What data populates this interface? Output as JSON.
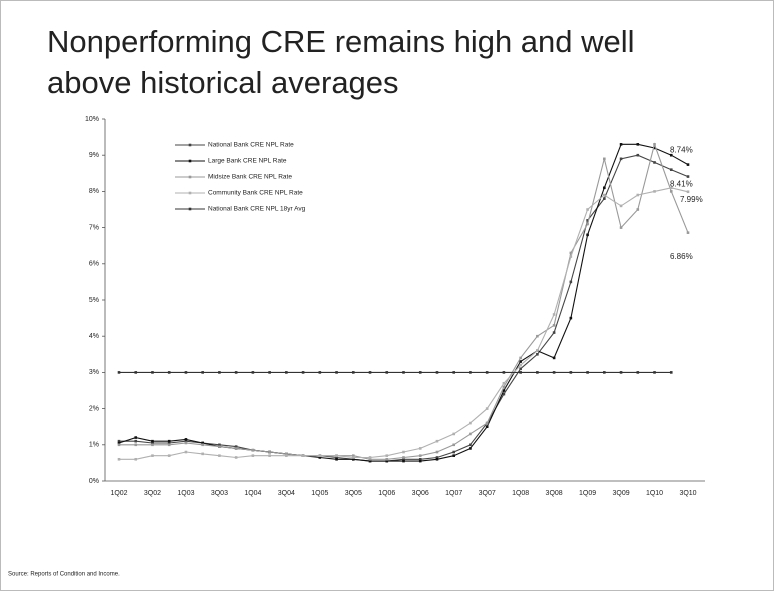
{
  "chart_data": {
    "type": "line",
    "title": "Nonperforming CRE remains high and well above historical averages",
    "source": "Source: Reports of Condition and Income.",
    "categories": [
      "1Q02",
      null,
      "3Q02",
      null,
      "1Q03",
      null,
      "3Q03",
      null,
      "1Q04",
      null,
      "3Q04",
      null,
      "1Q05",
      null,
      "3Q05",
      null,
      "1Q06",
      null,
      "3Q06",
      null,
      "1Q07",
      null,
      "3Q07",
      null,
      "1Q08",
      null,
      "3Q08",
      null,
      "1Q09",
      null,
      "3Q09",
      null,
      "1Q10",
      null,
      "3Q10"
    ],
    "ylim": [
      0,
      10
    ],
    "yticks": [
      {
        "value": 0,
        "label": "0%"
      },
      {
        "value": 1,
        "label": "1%"
      },
      {
        "value": 2,
        "label": "2%"
      },
      {
        "value": 3,
        "label": "3%"
      },
      {
        "value": 4,
        "label": "4%"
      },
      {
        "value": 5,
        "label": "5%"
      },
      {
        "value": 6,
        "label": "6%"
      },
      {
        "value": 7,
        "label": "7%"
      },
      {
        "value": 8,
        "label": "8%"
      },
      {
        "value": 9,
        "label": "9%"
      },
      {
        "value": 10,
        "label": "10%"
      }
    ],
    "series": [
      {
        "name": "National Bank CRE NPL Rate",
        "color": "#444444",
        "values": [
          1.1,
          1.1,
          1.05,
          1.05,
          1.1,
          1.05,
          1.0,
          0.95,
          0.85,
          0.8,
          0.75,
          0.7,
          0.7,
          0.65,
          0.6,
          0.55,
          0.55,
          0.6,
          0.6,
          0.65,
          0.8,
          1.0,
          1.6,
          2.4,
          3.1,
          3.5,
          4.1,
          5.5,
          7.2,
          7.8,
          8.9,
          9.0,
          8.8,
          8.6,
          8.41
        ],
        "value_labels": [
          null,
          null,
          null,
          null,
          null,
          null,
          null,
          null,
          null,
          null,
          null,
          null,
          null,
          null,
          null,
          null,
          null,
          null,
          null,
          null,
          null,
          null,
          null,
          null,
          null,
          null,
          null,
          null,
          null,
          null,
          null,
          null,
          null,
          null,
          "8.41%"
        ]
      },
      {
        "name": "Large Bank CRE NPL Rate",
        "color": "#111111",
        "values": [
          1.05,
          1.2,
          1.1,
          1.1,
          1.15,
          1.05,
          0.95,
          0.9,
          0.85,
          0.8,
          0.75,
          0.7,
          0.65,
          0.6,
          0.6,
          0.55,
          0.55,
          0.55,
          0.55,
          0.6,
          0.7,
          0.9,
          1.5,
          2.5,
          3.3,
          3.6,
          3.4,
          4.5,
          6.8,
          8.1,
          9.3,
          9.3,
          9.2,
          9.0,
          8.74
        ],
        "value_labels": [
          null,
          null,
          null,
          null,
          null,
          null,
          null,
          null,
          null,
          null,
          null,
          null,
          null,
          null,
          null,
          null,
          null,
          null,
          null,
          null,
          null,
          null,
          null,
          null,
          null,
          null,
          null,
          null,
          null,
          null,
          null,
          null,
          null,
          null,
          "8.74%"
        ]
      },
      {
        "name": "Midsize Bank CRE NPL Rate",
        "color": "#999999",
        "values": [
          1.0,
          1.0,
          1.0,
          1.0,
          1.05,
          1.0,
          0.95,
          0.9,
          0.85,
          0.8,
          0.75,
          0.7,
          0.7,
          0.7,
          0.7,
          0.6,
          0.6,
          0.65,
          0.7,
          0.8,
          1.0,
          1.3,
          1.6,
          2.6,
          3.4,
          4.0,
          4.3,
          6.3,
          7.1,
          8.9,
          7.0,
          7.5,
          9.3,
          8.0,
          6.86
        ],
        "value_labels": [
          null,
          null,
          null,
          null,
          null,
          null,
          null,
          null,
          null,
          null,
          null,
          null,
          null,
          null,
          null,
          null,
          null,
          null,
          null,
          null,
          null,
          null,
          null,
          null,
          null,
          null,
          null,
          null,
          null,
          null,
          null,
          null,
          null,
          null,
          "6.86%"
        ]
      },
      {
        "name": "Community Bank CRE NPL Rate",
        "color": "#b0b0b0",
        "values": [
          0.6,
          0.6,
          0.7,
          0.7,
          0.8,
          0.75,
          0.7,
          0.65,
          0.7,
          0.7,
          0.7,
          0.7,
          0.7,
          0.7,
          0.65,
          0.65,
          0.7,
          0.8,
          0.9,
          1.1,
          1.3,
          1.6,
          2.0,
          2.7,
          3.2,
          3.6,
          4.6,
          6.2,
          7.5,
          7.9,
          7.6,
          7.9,
          8.0,
          8.1,
          7.99
        ],
        "value_labels": [
          null,
          null,
          null,
          null,
          null,
          null,
          null,
          null,
          null,
          null,
          null,
          null,
          null,
          null,
          null,
          null,
          null,
          null,
          null,
          null,
          null,
          null,
          null,
          null,
          null,
          null,
          null,
          null,
          null,
          null,
          null,
          null,
          null,
          null,
          "7.99%"
        ]
      },
      {
        "name": "National Bank CRE NPL 18yr Avg",
        "color": "#333333",
        "values": [
          3,
          3,
          3,
          3,
          3,
          3,
          3,
          3,
          3,
          3,
          3,
          3,
          3,
          3,
          3,
          3,
          3,
          3,
          3,
          3,
          3,
          3,
          3,
          3,
          3,
          3,
          3,
          3,
          3,
          3,
          3,
          3,
          3,
          3,
          null
        ]
      }
    ],
    "legend": "upper left"
  }
}
